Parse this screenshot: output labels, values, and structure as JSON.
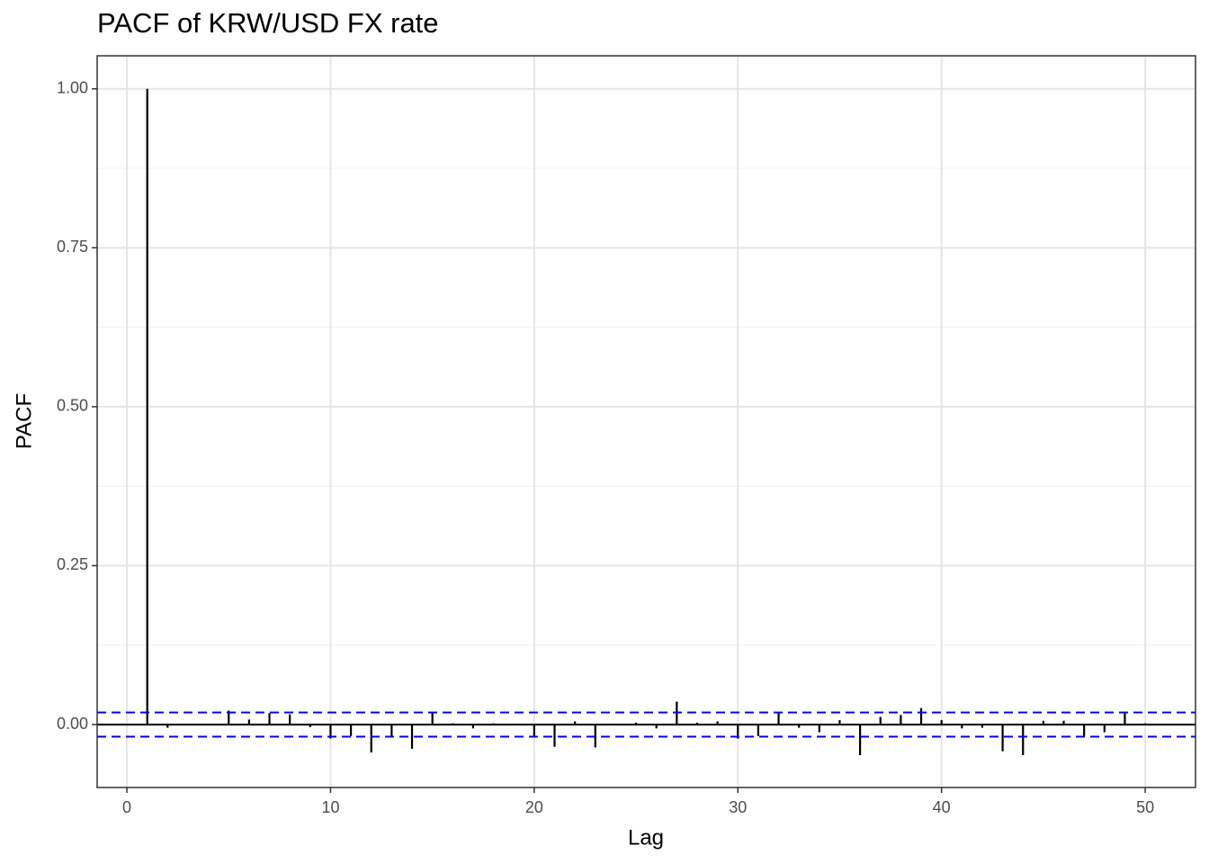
{
  "chart_data": {
    "type": "pacf",
    "title": "PACF of  KRW/USD FX rate",
    "x_label": "Lag",
    "y_label": "PACF",
    "x": [
      1,
      2,
      3,
      4,
      5,
      6,
      7,
      8,
      9,
      10,
      11,
      12,
      13,
      14,
      15,
      16,
      17,
      18,
      19,
      20,
      21,
      22,
      23,
      24,
      25,
      26,
      27,
      28,
      29,
      30,
      31,
      32,
      33,
      34,
      35,
      36,
      37,
      38,
      39,
      40,
      41,
      42,
      43,
      44,
      45,
      46,
      47,
      48,
      49,
      50
    ],
    "values": [
      1.0,
      -0.005,
      0.001,
      0,
      0.022,
      0.008,
      0.018,
      0.016,
      -0.004,
      -0.022,
      -0.018,
      -0.044,
      -0.018,
      -0.038,
      0.018,
      0.002,
      -0.006,
      0.002,
      0.001,
      -0.018,
      -0.035,
      0.005,
      -0.036,
      0.001,
      0.003,
      -0.006,
      0.036,
      0.003,
      0.005,
      -0.022,
      -0.018,
      0.018,
      -0.005,
      -0.012,
      0.007,
      -0.048,
      0.012,
      0.015,
      0.026,
      0.007,
      -0.006,
      -0.005,
      -0.042,
      -0.048,
      0.006,
      0.006,
      -0.018,
      -0.012,
      0.018,
      0.002
    ],
    "color": "#000000",
    "ci_lines": [
      0.019,
      -0.019
    ],
    "ci_color": "#0000ff",
    "xlim": [
      -1.46,
      52.47
    ],
    "ylim": [
      -0.099,
      1.052
    ],
    "xticks": [
      0,
      10,
      20,
      30,
      40,
      50
    ],
    "yticks": [
      {
        "value": 0,
        "label": "0.00"
      },
      {
        "value": 0.25,
        "label": "0.25"
      },
      {
        "value": 0.5,
        "label": "0.50"
      },
      {
        "value": 0.75,
        "label": "0.75"
      },
      {
        "value": 1,
        "label": "1.00"
      }
    ],
    "grid": true
  }
}
